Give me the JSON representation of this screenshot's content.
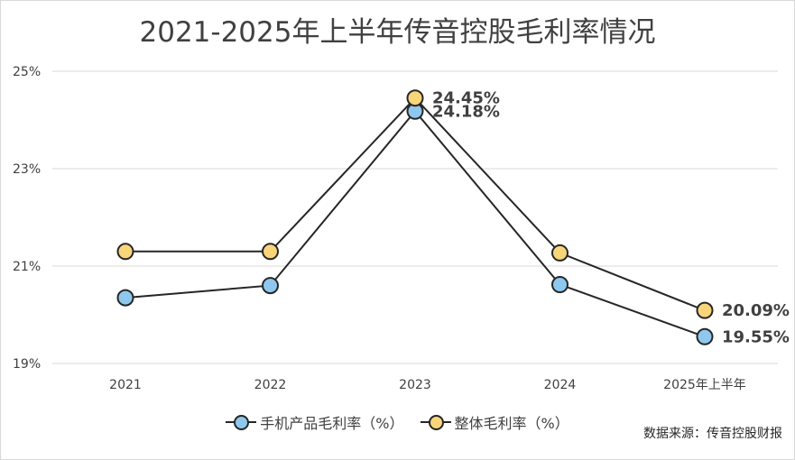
{
  "chart_data": {
    "type": "line",
    "title": "2021-2025年上半年传音控股毛利率情况",
    "categories": [
      "2021",
      "2022",
      "2023",
      "2024",
      "2025年上半年"
    ],
    "ylim": [
      19,
      25
    ],
    "yticks": [
      "19%",
      "21%",
      "23%",
      "25%"
    ],
    "ytick_values": [
      19,
      21,
      23,
      25
    ],
    "grid": "horizontal",
    "legend_position": "bottom",
    "series": [
      {
        "name": "手机产品毛利率（%）",
        "color": "#8fc8ee",
        "values": [
          20.35,
          20.6,
          24.18,
          20.62,
          19.55
        ],
        "labels": [
          "",
          "",
          "24.18%",
          "",
          "19.55%"
        ]
      },
      {
        "name": "整体毛利率（%）",
        "color": "#f9d57a",
        "values": [
          21.3,
          21.3,
          24.45,
          21.27,
          20.09
        ],
        "labels": [
          "",
          "",
          "24.45%",
          "",
          "20.09%"
        ]
      }
    ]
  },
  "source_note": "数据来源：传音控股财报"
}
